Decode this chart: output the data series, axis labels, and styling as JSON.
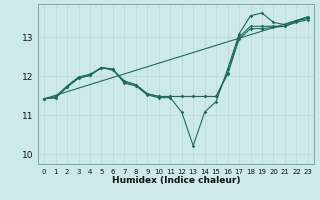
{
  "xlabel": "Humidex (Indice chaleur)",
  "background_color": "#cee9e9",
  "grid_color_major": "#b8d8d8",
  "grid_color_minor": "#cce0e0",
  "line_color": "#1a6b5a",
  "xlim": [
    -0.5,
    23.5
  ],
  "ylim": [
    9.75,
    13.85
  ],
  "xticks": [
    0,
    1,
    2,
    3,
    4,
    5,
    6,
    7,
    8,
    9,
    10,
    11,
    12,
    13,
    14,
    15,
    16,
    17,
    18,
    19,
    20,
    21,
    22,
    23
  ],
  "yticks": [
    10,
    11,
    12,
    13
  ],
  "line_main": {
    "x": [
      0,
      1,
      2,
      3,
      4,
      5,
      6,
      7,
      8,
      9,
      10,
      11,
      12,
      13,
      14,
      15,
      16,
      17,
      18,
      19,
      20,
      21,
      22,
      23
    ],
    "y": [
      11.42,
      11.45,
      11.72,
      11.95,
      12.02,
      12.22,
      12.18,
      11.82,
      11.75,
      11.52,
      11.45,
      11.45,
      11.08,
      10.22,
      11.08,
      11.35,
      12.18,
      13.08,
      13.55,
      13.62,
      13.38,
      13.32,
      13.42,
      13.52
    ]
  },
  "line2": {
    "x": [
      0,
      1,
      2,
      3,
      4,
      5,
      6,
      7,
      8,
      9,
      10,
      11,
      12,
      13,
      14,
      15,
      16,
      17,
      18,
      19,
      20,
      21,
      22,
      23
    ],
    "y": [
      11.42,
      11.45,
      11.72,
      11.95,
      12.02,
      12.22,
      12.18,
      11.85,
      11.78,
      11.55,
      11.48,
      11.48,
      11.48,
      11.48,
      11.48,
      11.48,
      12.08,
      13.0,
      13.28,
      13.28,
      13.28,
      13.28,
      13.42,
      13.48
    ]
  },
  "line3": {
    "x": [
      0,
      1,
      2,
      3,
      4,
      5,
      6,
      7,
      8,
      9,
      10,
      11,
      12,
      13,
      14,
      15,
      16,
      17,
      18,
      19,
      20,
      21,
      22,
      23
    ],
    "y": [
      11.42,
      11.48,
      11.75,
      11.98,
      12.05,
      12.22,
      12.15,
      11.88,
      11.78,
      11.55,
      11.48,
      11.48,
      11.48,
      11.48,
      11.48,
      11.48,
      12.05,
      12.95,
      13.22,
      13.22,
      13.25,
      13.28,
      13.38,
      13.45
    ]
  },
  "line_linear": {
    "x": [
      0,
      23
    ],
    "y": [
      11.42,
      13.52
    ]
  }
}
